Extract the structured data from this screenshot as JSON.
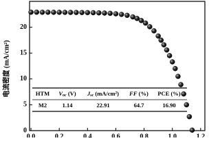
{
  "chart_data": {
    "type": "scatter",
    "ylabel": "电流密度 (mA/cm²)",
    "xlim": [
      -0.01,
      1.23
    ],
    "ylim": [
      0,
      25
    ],
    "xticks": [
      {
        "value": 0,
        "label": "0.0"
      },
      0.2,
      0.4,
      0.6,
      0.8,
      {
        "value": 1,
        "label": "1.0"
      },
      1.2
    ],
    "yticks": [
      0,
      5,
      10,
      15,
      20
    ],
    "color": "#000000",
    "x": [
      0,
      0.04,
      0.08,
      0.12,
      0.16,
      0.2,
      0.24,
      0.28,
      0.32,
      0.36,
      0.4,
      0.44,
      0.48,
      0.52,
      0.56,
      0.6,
      0.64,
      0.68,
      0.72,
      0.75,
      0.78,
      0.81,
      0.84,
      0.87,
      0.9,
      0.92,
      0.94,
      0.96,
      0.98,
      1.0,
      1.02,
      1.04,
      1.06,
      1.08,
      1.1,
      1.12,
      1.14
    ],
    "values": [
      22.91,
      22.91,
      22.9,
      22.9,
      22.89,
      22.89,
      22.88,
      22.87,
      22.86,
      22.85,
      22.83,
      22.81,
      22.78,
      22.74,
      22.69,
      22.6,
      22.48,
      22.3,
      22.0,
      21.7,
      21.3,
      20.8,
      20.1,
      19.3,
      18.3,
      17.5,
      16.6,
      15.6,
      14.5,
      13.3,
      12.0,
      10.5,
      8.9,
      7.1,
      5.0,
      2.7,
      0.1
    ],
    "table": {
      "header": [
        [
          "HTM"
        ],
        [
          "V",
          "oc",
          " (V)"
        ],
        [
          "J",
          "sc",
          " (mA/cm²)"
        ],
        [
          "FF",
          " (%)"
        ],
        [
          "PCE (%)"
        ]
      ],
      "rows": [
        [
          "M2",
          "1.14",
          "22.91",
          "64.7",
          "16.90"
        ]
      ]
    }
  }
}
